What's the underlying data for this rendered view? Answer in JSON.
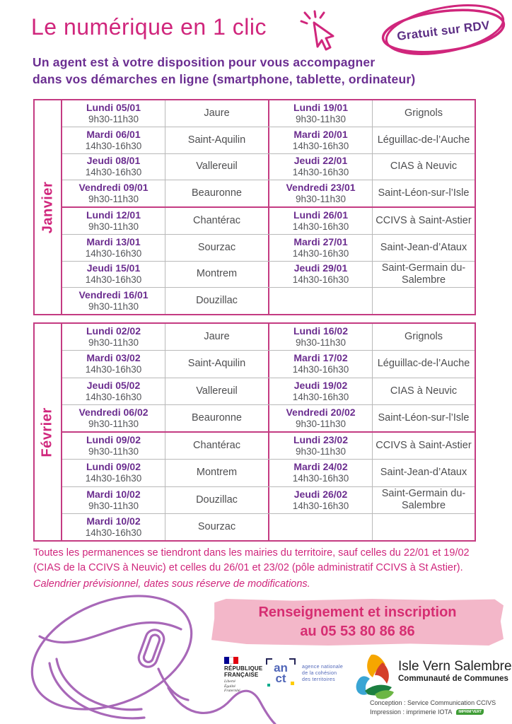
{
  "colors": {
    "pink": "#d0267c",
    "purple": "#6b2e91",
    "gray_text": "#55565a",
    "table_border_pink": "#c43b82",
    "table_border_gray": "#b9b9b9",
    "banner_bg": "#f3b7c9",
    "banner_text": "#d62e72",
    "mouse_line": "#a868b8"
  },
  "header": {
    "title": "Le numérique en 1 clic",
    "badge": "Gratuit sur RDV",
    "subtitle_line1": "Un agent est à votre disposition pour vous accompagner",
    "subtitle_line2": "dans vos démarches en ligne (smartphone, tablette, ordinateur)"
  },
  "tables": [
    {
      "month": "Janvier",
      "week_break_after_row": 4,
      "rows": [
        {
          "left": {
            "day": "Lundi 05/01",
            "time": "9h30-11h30",
            "place": "Jaure"
          },
          "right": {
            "day": "Lundi 19/01",
            "time": "9h30-11h30",
            "place": "Grignols"
          }
        },
        {
          "left": {
            "day": "Mardi 06/01",
            "time": "14h30-16h30",
            "place": "Saint-Aquilin"
          },
          "right": {
            "day": "Mardi 20/01",
            "time": "14h30-16h30",
            "place": "Léguillac-de-l’Auche"
          }
        },
        {
          "left": {
            "day": "Jeudi 08/01",
            "time": "14h30-16h30",
            "place": "Vallereuil"
          },
          "right": {
            "day": "Jeudi 22/01",
            "time": "14h30-16h30",
            "place": "CIAS à Neuvic"
          }
        },
        {
          "left": {
            "day": "Vendredi 09/01",
            "time": "9h30-11h30",
            "place": "Beauronne"
          },
          "right": {
            "day": "Vendredi 23/01",
            "time": "9h30-11h30",
            "place": "Saint-Léon-sur-l’Isle"
          }
        },
        {
          "left": {
            "day": "Lundi 12/01",
            "time": "9h30-11h30",
            "place": "Chantérac"
          },
          "right": {
            "day": "Lundi 26/01",
            "time": "14h30-16h30",
            "place": "CCIVS à Saint-Astier"
          }
        },
        {
          "left": {
            "day": "Mardi 13/01",
            "time": "14h30-16h30",
            "place": "Sourzac"
          },
          "right": {
            "day": "Mardi 27/01",
            "time": "14h30-16h30",
            "place": "Saint-Jean-d’Ataux"
          }
        },
        {
          "left": {
            "day": "Jeudi 15/01",
            "time": "14h30-16h30",
            "place": "Montrem"
          },
          "right": {
            "day": "Jeudi 29/01",
            "time": "14h30-16h30",
            "place": "Saint-Germain du-Salembre"
          }
        },
        {
          "left": {
            "day": "Vendredi 16/01",
            "time": "9h30-11h30",
            "place": "Douzillac"
          },
          "right": null
        }
      ]
    },
    {
      "month": "Février",
      "week_break_after_row": 4,
      "rows": [
        {
          "left": {
            "day": "Lundi 02/02",
            "time": "9h30-11h30",
            "place": "Jaure"
          },
          "right": {
            "day": "Lundi 16/02",
            "time": "9h30-11h30",
            "place": "Grignols"
          }
        },
        {
          "left": {
            "day": "Mardi 03/02",
            "time": "14h30-16h30",
            "place": "Saint-Aquilin"
          },
          "right": {
            "day": "Mardi 17/02",
            "time": "14h30-16h30",
            "place": "Léguillac-de-l’Auche"
          }
        },
        {
          "left": {
            "day": "Jeudi 05/02",
            "time": "14h30-16h30",
            "place": "Vallereuil"
          },
          "right": {
            "day": "Jeudi 19/02",
            "time": "14h30-16h30",
            "place": "CIAS à Neuvic"
          }
        },
        {
          "left": {
            "day": "Vendredi 06/02",
            "time": "9h30-11h30",
            "place": "Beauronne"
          },
          "right": {
            "day": "Vendredi 20/02",
            "time": "9h30-11h30",
            "place": "Saint-Léon-sur-l’Isle"
          }
        },
        {
          "left": {
            "day": "Lundi 09/02",
            "time": "9h30-11h30",
            "place": "Chantérac"
          },
          "right": {
            "day": "Lundi 23/02",
            "time": "9h30-11h30",
            "place": "CCIVS à Saint-Astier"
          }
        },
        {
          "left": {
            "day": "Lundi 09/02",
            "time": "14h30-16h30",
            "place": "Montrem"
          },
          "right": {
            "day": "Mardi 24/02",
            "time": "14h30-16h30",
            "place": "Saint-Jean-d’Ataux"
          }
        },
        {
          "left": {
            "day": "Mardi 10/02",
            "time": "9h30-11h30",
            "place": "Douzillac"
          },
          "right": {
            "day": "Jeudi 26/02",
            "time": "14h30-16h30",
            "place": "Saint-Germain du-Salembre"
          }
        },
        {
          "left": {
            "day": "Mardi 10/02",
            "time": "14h30-16h30",
            "place": "Sourzac"
          },
          "right": null
        }
      ]
    }
  ],
  "notes": {
    "paragraph": "Toutes les permanences se tiendront dans les mairies du territoire, sauf celles du 22/01 et 19/02 (CIAS de la CCIVS à Neuvic) et celles du 26/01 et 23/02 (pôle administratif CCIVS à St Astier).",
    "disclaimer": "Calendrier prévisionnel, dates sous réserve de modifications."
  },
  "banner": {
    "line1": "Renseignement et inscription",
    "line2": "au 05 53 80 86 86"
  },
  "footer": {
    "republique_francaise": {
      "name_line1": "RÉPUBLIQUE",
      "name_line2": "FRANÇAISE",
      "motto": [
        "Liberté",
        "Égalité",
        "Fraternité"
      ]
    },
    "anct": {
      "letters_line1": "an",
      "letters_line2": "ct",
      "desc": [
        "agence nationale",
        "de la cohésion",
        "des territoires"
      ]
    },
    "isle_vern_salembre": {
      "name": "Isle Vern Salembre",
      "subtitle": "Communauté de Communes"
    },
    "credits_line1": "Conception : Service Communication CCIVS",
    "credits_line2": "Impression : imprimerie IOTA",
    "imprim_vert": "IMPRIM’VERT"
  }
}
